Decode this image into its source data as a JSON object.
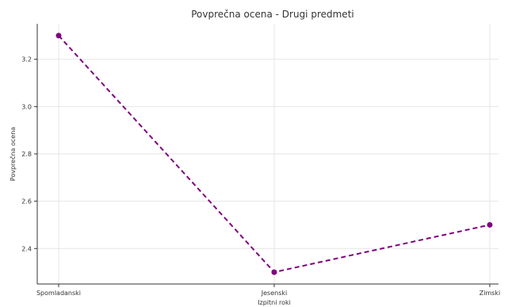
{
  "chart_data": {
    "type": "line",
    "title": "Povprečna ocena - Drugi predmeti",
    "xlabel": "Izpitni roki",
    "ylabel": "Povprečna ocena",
    "categories": [
      "Spomladanski",
      "Jesenski",
      "Zimski"
    ],
    "series": [
      {
        "values": [
          3.3,
          2.3,
          2.5
        ],
        "color": "#800080",
        "line_style": "dashed",
        "marker": "circle"
      }
    ],
    "ylim": [
      2.25,
      3.35
    ],
    "yticks": [
      2.4,
      2.6,
      2.8,
      3.0,
      3.2
    ],
    "grid": true
  }
}
